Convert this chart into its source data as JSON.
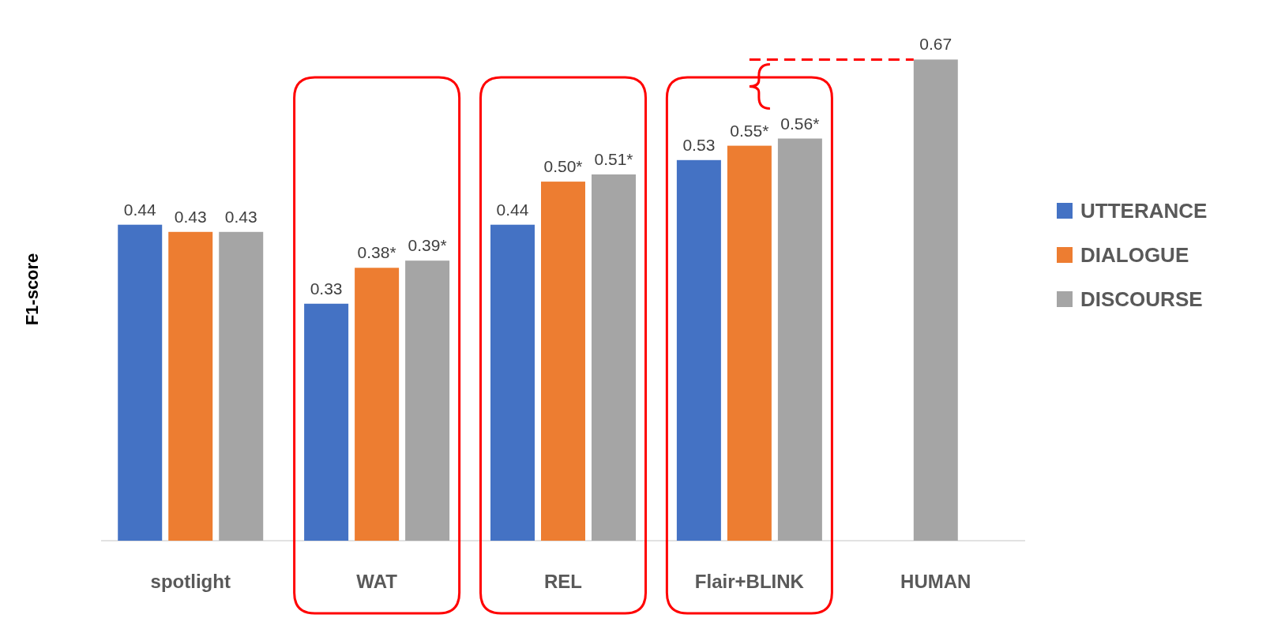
{
  "chart_data": {
    "type": "bar",
    "ylabel": "F1-score",
    "categories": [
      "spotlight",
      "WAT",
      "REL",
      "Flair+BLINK",
      "HUMAN"
    ],
    "tick_labels": "x",
    "legend": "right",
    "series": [
      {
        "name": "UTTERANCE",
        "color": "#4472c4",
        "values": [
          0.44,
          0.33,
          0.44,
          0.53,
          null
        ],
        "value_labels": [
          "0.44",
          "0.33",
          "0.44",
          "0.53",
          null
        ]
      },
      {
        "name": "DIALOGUE",
        "color": "#ed7d31",
        "values": [
          0.43,
          0.38,
          0.5,
          0.55,
          null
        ],
        "value_labels": [
          "0.43",
          "0.38*",
          "0.50*",
          "0.55*",
          null
        ]
      },
      {
        "name": "DISCOURSE",
        "color": "#a5a5a5",
        "values": [
          0.43,
          0.39,
          0.51,
          0.56,
          0.67
        ],
        "value_labels": [
          "0.43",
          "0.39*",
          "0.51*",
          "0.56*",
          "0.67"
        ]
      }
    ],
    "ref_lines": [
      {
        "axis": "y",
        "value": 0.67,
        "color": "#ff0000",
        "line_style": "dashed"
      }
    ]
  }
}
